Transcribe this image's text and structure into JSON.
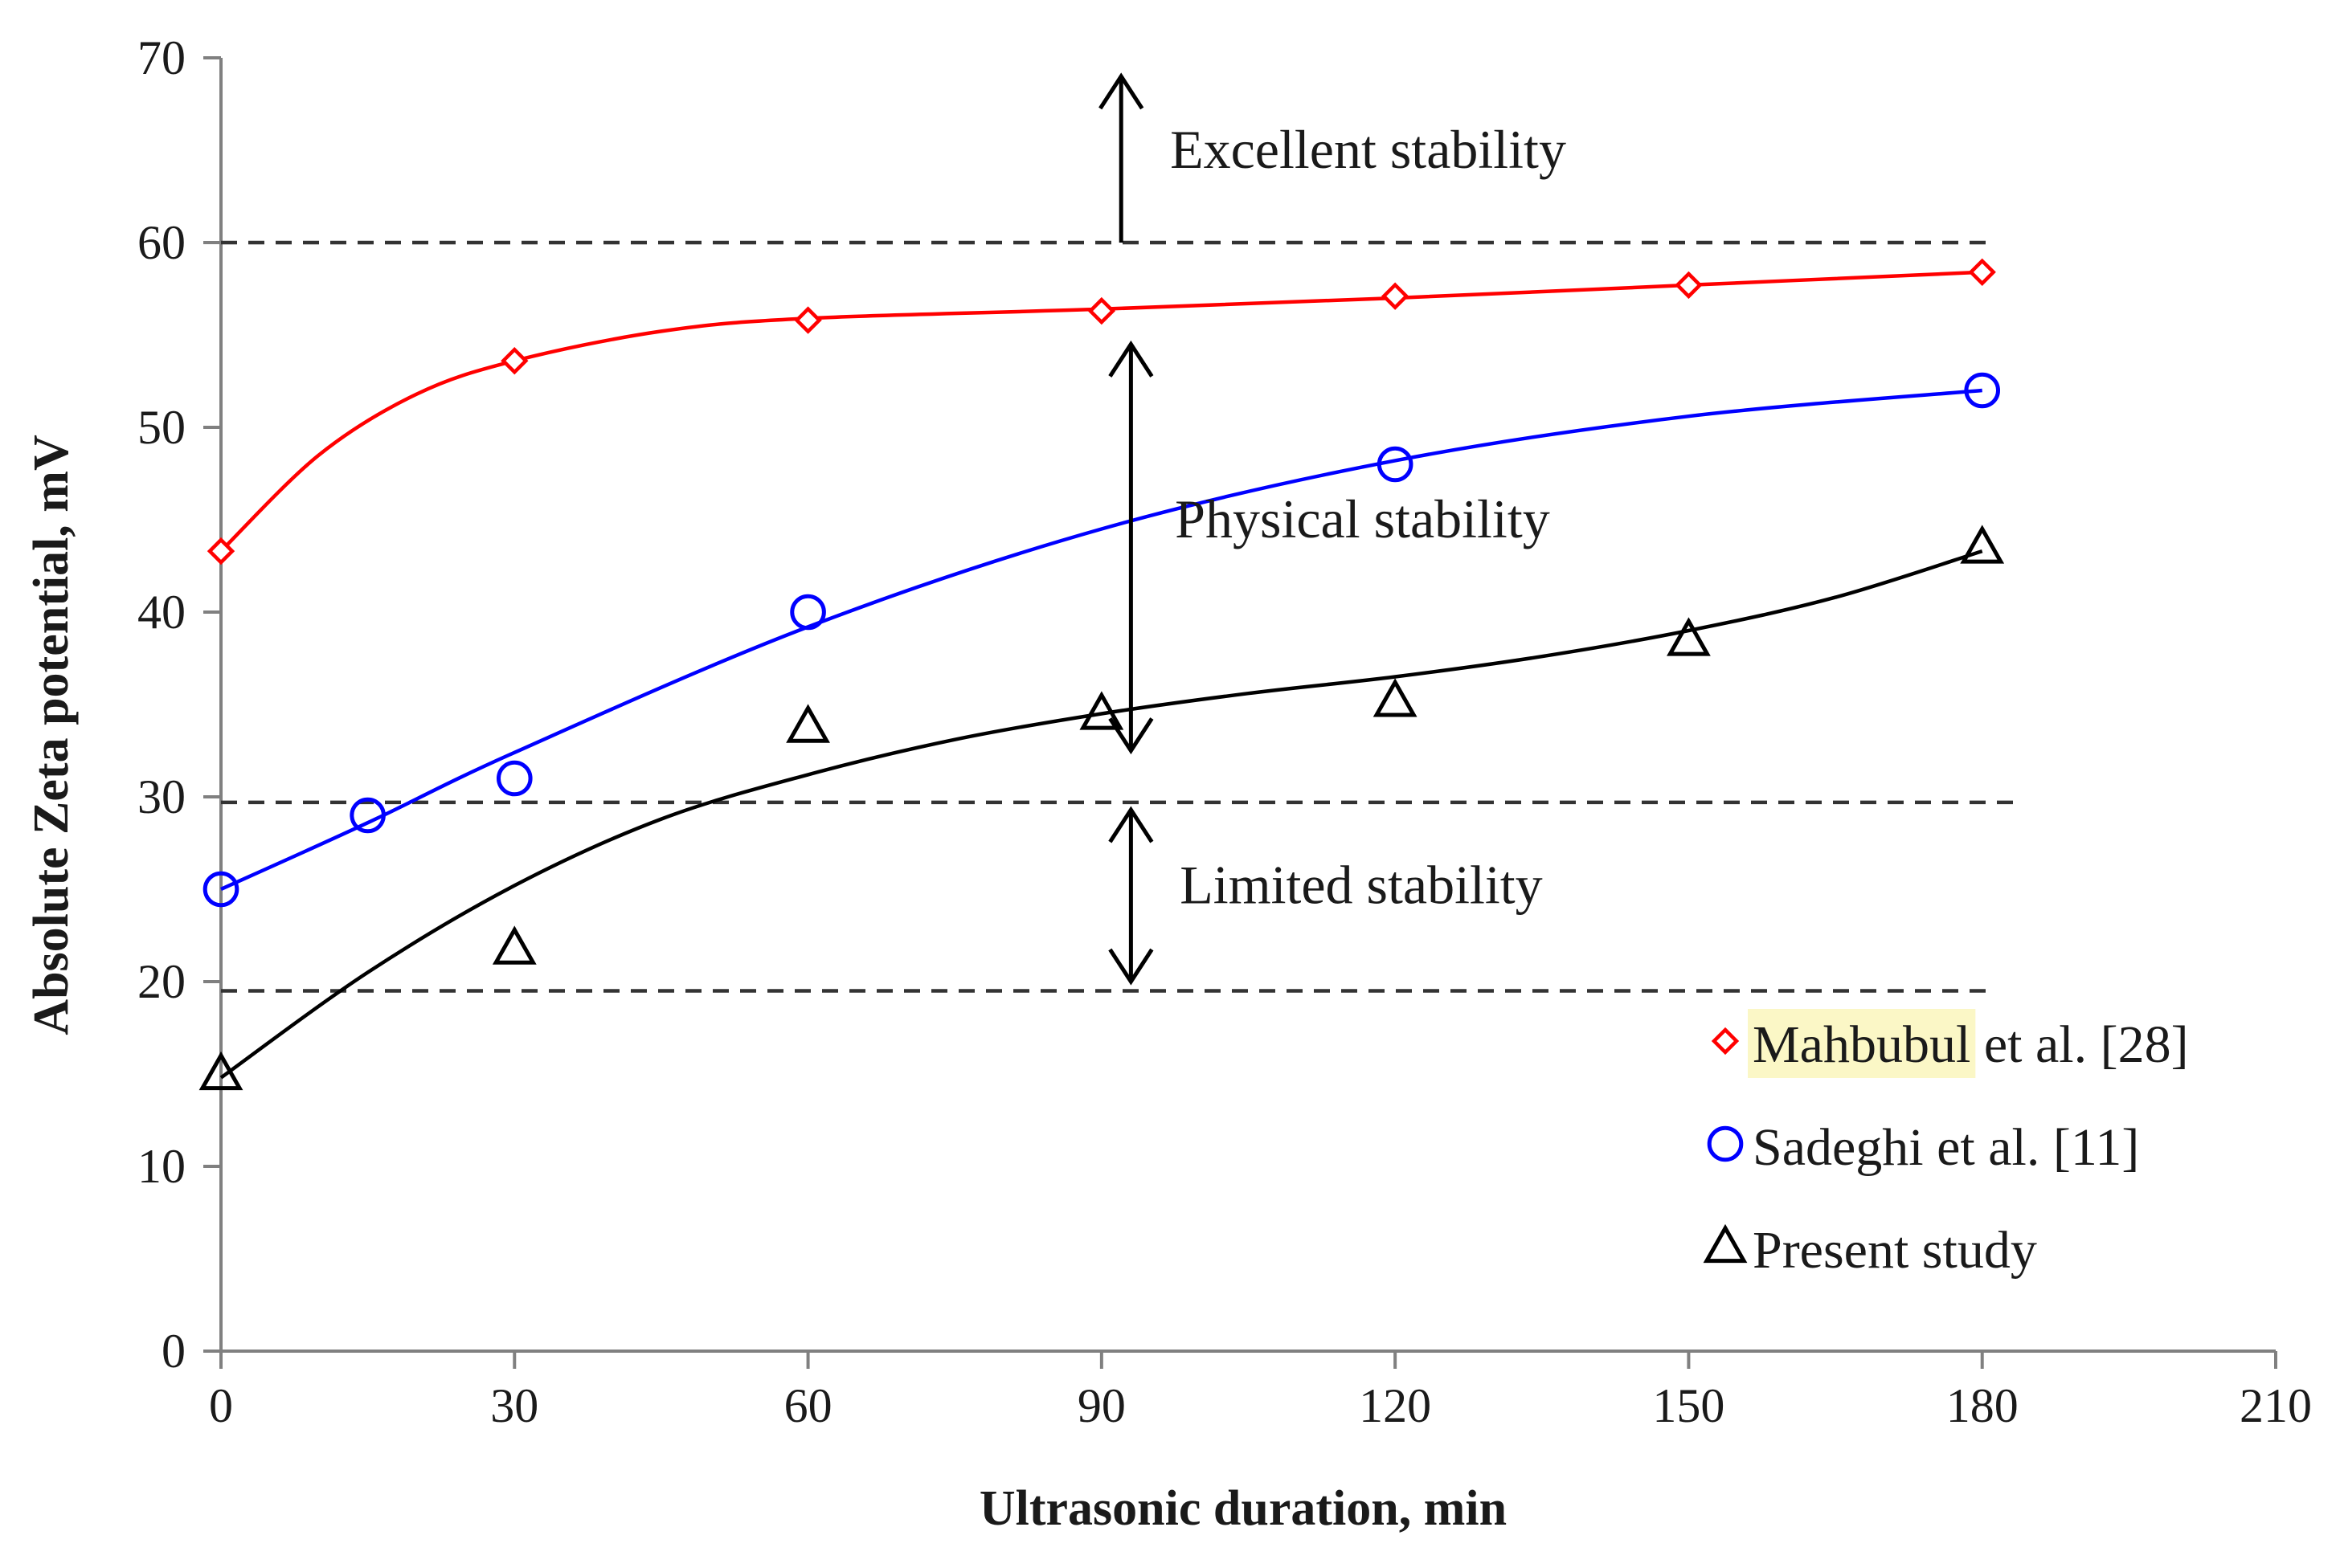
{
  "chart_data": {
    "type": "scatter",
    "title": "",
    "xlabel": "Ultrasonic duration, min",
    "ylabel": "Absolute Zeta potential, mV",
    "xlim": [
      0,
      210
    ],
    "ylim": [
      0,
      70
    ],
    "xticks": [
      0,
      30,
      60,
      90,
      120,
      150,
      180,
      210
    ],
    "yticks": [
      0,
      10,
      20,
      30,
      40,
      50,
      60,
      70
    ],
    "grid": false,
    "series": [
      {
        "name": "Mahbubul et al. [28]",
        "name_highlight": "Mahbubul",
        "name_rest": " et al. [28]",
        "marker": "diamond",
        "color": "#ff0000",
        "x": [
          0,
          30,
          60,
          90,
          120,
          150,
          180
        ],
        "y": [
          43.3,
          53.6,
          55.8,
          56.3,
          57.1,
          57.7,
          58.4
        ],
        "fit": [
          [
            0,
            43.3
          ],
          [
            10,
            48.5
          ],
          [
            20,
            51.8
          ],
          [
            30,
            53.6
          ],
          [
            45,
            55.2
          ],
          [
            60,
            55.9
          ],
          [
            90,
            56.4
          ],
          [
            120,
            57.0
          ],
          [
            150,
            57.7
          ],
          [
            180,
            58.4
          ]
        ]
      },
      {
        "name": "Sadeghi et al. [11]",
        "marker": "circle",
        "color": "#0000ff",
        "x": [
          0,
          15,
          30,
          60,
          120,
          180
        ],
        "y": [
          25,
          29,
          31,
          40,
          48,
          52
        ],
        "fit": [
          [
            0,
            25
          ],
          [
            15,
            28.6
          ],
          [
            30,
            32.4
          ],
          [
            60,
            39.2
          ],
          [
            90,
            44.5
          ],
          [
            120,
            48.2
          ],
          [
            150,
            50.6
          ],
          [
            180,
            52
          ]
        ]
      },
      {
        "name": "Present study",
        "marker": "triangle",
        "color": "#000000",
        "x": [
          0,
          30,
          60,
          90,
          120,
          150,
          180
        ],
        "y": [
          15,
          21.8,
          33.8,
          34.5,
          35.2,
          38.5,
          43.5
        ],
        "fit": [
          [
            0,
            14.8
          ],
          [
            15,
            20.5
          ],
          [
            30,
            25.2
          ],
          [
            45,
            28.8
          ],
          [
            60,
            31.2
          ],
          [
            75,
            33.1
          ],
          [
            90,
            34.5
          ],
          [
            105,
            35.6
          ],
          [
            120,
            36.5
          ],
          [
            135,
            37.6
          ],
          [
            150,
            39.0
          ],
          [
            165,
            40.8
          ],
          [
            180,
            43.3
          ]
        ]
      }
    ],
    "reference_lines": [
      {
        "y": 60,
        "x_end": 181
      },
      {
        "y": 29.7,
        "x_end": 184
      },
      {
        "y": 19.5,
        "x_end": 181
      }
    ],
    "annotations": [
      {
        "text": "Excellent stability",
        "arrow": "up",
        "arrow_x": 92,
        "y_from": 60,
        "y_to": 69,
        "label_x": 97,
        "label_y": 65
      },
      {
        "text": "Physical stability",
        "arrow": "both",
        "arrow_x": 93,
        "y_from": 32.5,
        "y_to": 54.5,
        "label_x": 97.5,
        "label_y": 45
      },
      {
        "text": "Limited stability",
        "arrow": "both",
        "arrow_x": 93,
        "y_from": 20,
        "y_to": 29.3,
        "label_x": 98,
        "label_y": 25.2
      }
    ],
    "legend": {
      "position": "bottom-right"
    }
  }
}
